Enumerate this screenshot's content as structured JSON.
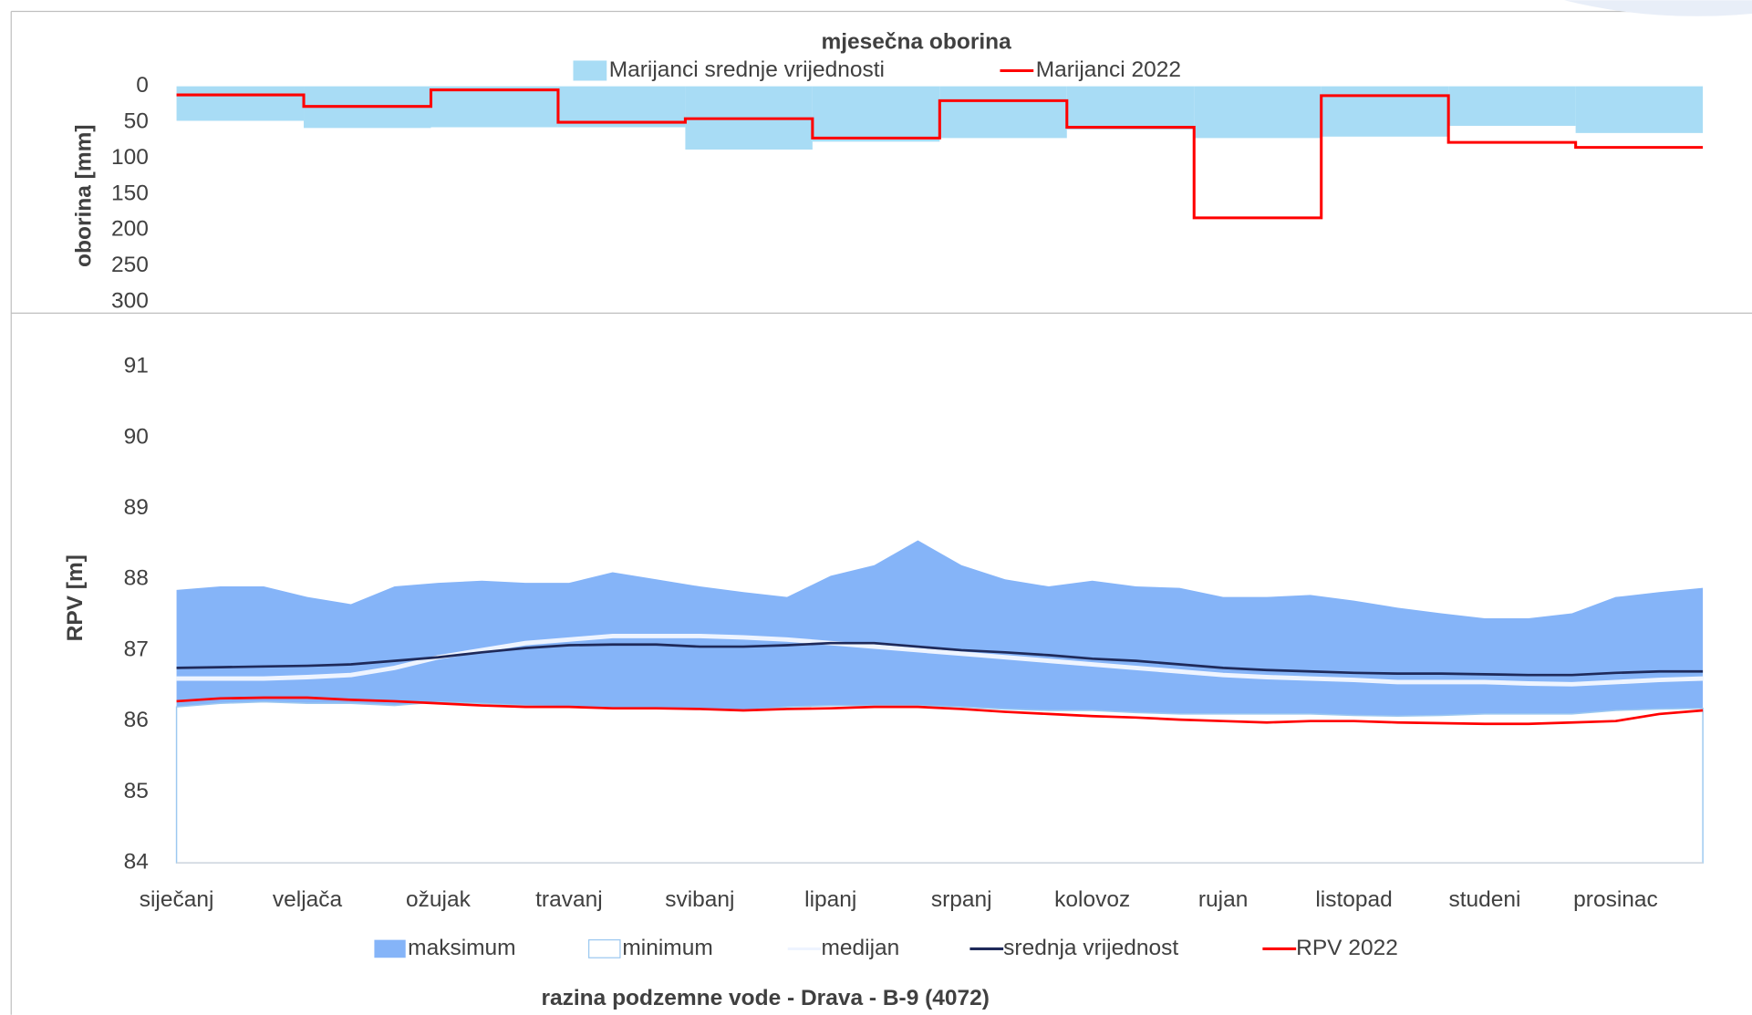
{
  "chart_data": [
    {
      "type": "step",
      "title": "mjesečna oborina",
      "y_label": "oborina [mm]",
      "categories": [
        "siječanj",
        "veljača",
        "ožujak",
        "travanj",
        "svibanj",
        "lipanj",
        "srpanj",
        "kolovoz",
        "rujan",
        "listopad",
        "studeni",
        "prosinac"
      ],
      "series": [
        {
          "name": "Marijanci srednje vrijednosti",
          "color": "#a8dcf5",
          "kind": "area",
          "values": [
            48,
            58,
            57,
            57,
            88,
            77,
            72,
            60,
            72,
            70,
            55,
            65
          ]
        },
        {
          "name": "Marijanci 2022",
          "color": "#ff0000",
          "kind": "line",
          "values": [
            12,
            28,
            5,
            50,
            45,
            72,
            20,
            57,
            183,
            13,
            78,
            85
          ]
        }
      ],
      "ylim": [
        0,
        300
      ],
      "yticks": [
        0,
        50,
        100,
        150,
        200,
        250,
        300
      ],
      "inverted": true
    },
    {
      "type": "band",
      "title": "razina podzemne vode - Drava - B-9 (4072)",
      "y_label": "RPV [m]",
      "categories": [
        "siječanj",
        null,
        null,
        "veljača",
        null,
        null,
        "ožujak",
        null,
        null,
        "travanj",
        null,
        null,
        "svibanj",
        null,
        null,
        "lipanj",
        null,
        null,
        "srpanj",
        null,
        null,
        "kolovoz",
        null,
        null,
        "rujan",
        null,
        null,
        "listopad",
        null,
        null,
        "studeni",
        null,
        null,
        "prosinac",
        null,
        null
      ],
      "series": [
        {
          "name": "maksimum",
          "color": "#85b4f8",
          "kind": "area",
          "values": [
            87.85,
            87.9,
            87.9,
            87.75,
            87.65,
            87.9,
            87.95,
            87.98,
            87.95,
            87.95,
            88.1,
            88.0,
            87.9,
            87.82,
            87.75,
            88.05,
            88.2,
            88.55,
            88.2,
            88.0,
            87.9,
            87.98,
            87.9,
            87.88,
            87.75,
            87.75,
            87.78,
            87.7,
            87.6,
            87.52,
            87.45,
            87.45,
            87.52,
            87.75,
            87.82,
            87.88
          ]
        },
        {
          "name": "minimum",
          "color": "#9cc8f0",
          "kind": "hollow",
          "values": [
            86.2,
            86.25,
            86.27,
            86.25,
            86.25,
            86.22,
            86.27,
            86.25,
            86.22,
            86.2,
            86.18,
            86.18,
            86.17,
            86.15,
            86.2,
            86.22,
            86.22,
            86.22,
            86.2,
            86.17,
            86.15,
            86.15,
            86.12,
            86.1,
            86.1,
            86.1,
            86.1,
            86.08,
            86.07,
            86.08,
            86.1,
            86.1,
            86.1,
            86.15,
            86.17,
            86.18
          ]
        },
        {
          "name": "medijan",
          "color": "#eef4ff",
          "kind": "line",
          "values": [
            86.6,
            86.6,
            86.6,
            86.62,
            86.65,
            86.75,
            86.9,
            87.0,
            87.1,
            87.15,
            87.2,
            87.2,
            87.2,
            87.18,
            87.15,
            87.1,
            87.05,
            87.0,
            86.95,
            86.9,
            86.85,
            86.8,
            86.75,
            86.7,
            86.65,
            86.62,
            86.6,
            86.58,
            86.55,
            86.55,
            86.55,
            86.53,
            86.52,
            86.55,
            86.58,
            86.6
          ]
        },
        {
          "name": "srednja vrijednost",
          "color": "#1f2a5a",
          "kind": "line",
          "values": [
            86.75,
            86.76,
            86.77,
            86.78,
            86.8,
            86.85,
            86.9,
            86.97,
            87.03,
            87.07,
            87.08,
            87.08,
            87.05,
            87.05,
            87.07,
            87.1,
            87.1,
            87.05,
            87.0,
            86.97,
            86.93,
            86.88,
            86.85,
            86.8,
            86.75,
            86.72,
            86.7,
            86.68,
            86.67,
            86.67,
            86.66,
            86.65,
            86.65,
            86.68,
            86.7,
            86.7
          ]
        },
        {
          "name": "RPV 2022",
          "color": "#ff0000",
          "kind": "line",
          "values": [
            86.28,
            86.32,
            86.33,
            86.33,
            86.3,
            86.28,
            86.25,
            86.22,
            86.2,
            86.2,
            86.18,
            86.18,
            86.17,
            86.15,
            86.17,
            86.18,
            86.2,
            86.2,
            86.17,
            86.13,
            86.1,
            86.07,
            86.05,
            86.02,
            86.0,
            85.98,
            86.0,
            86.0,
            85.98,
            85.97,
            85.96,
            85.96,
            85.98,
            86.0,
            86.1,
            86.15
          ]
        }
      ],
      "ylim": [
        84,
        91
      ],
      "yticks": [
        84,
        85,
        86,
        87,
        88,
        89,
        90,
        91
      ]
    }
  ]
}
